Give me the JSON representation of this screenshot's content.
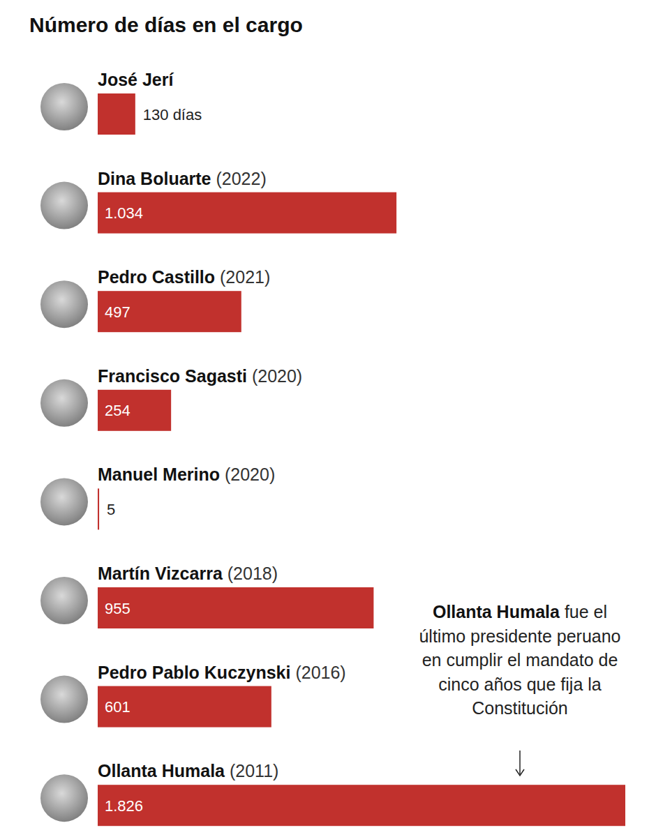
{
  "chart_data": {
    "type": "bar",
    "orientation": "horizontal",
    "title": "Número de días en el cargo",
    "categories": [
      "José Jerí",
      "Dina Boluarte (2022)",
      "Pedro Castillo (2021)",
      "Francisco Sagasti (2020)",
      "Manuel Merino (2020)",
      "Martín Vizcarra (2018)",
      "Pedro Pablo Kuczynski (2016)",
      "Ollanta Humala (2011)"
    ],
    "values": [
      130,
      1034,
      497,
      254,
      5,
      955,
      601,
      1826
    ],
    "value_labels": [
      "130 días",
      "1.034",
      "497",
      "254",
      "5",
      "955",
      "601",
      "1.826"
    ],
    "data_labels": true,
    "color": "#c1312d",
    "xlim": [
      0,
      1826
    ],
    "tick_labels": false,
    "grid": false,
    "annotations": [
      "Ollanta Humala fue el último presidente peruano en cumplir el mandato de cinco años que fija la Constitución"
    ]
  }
}
